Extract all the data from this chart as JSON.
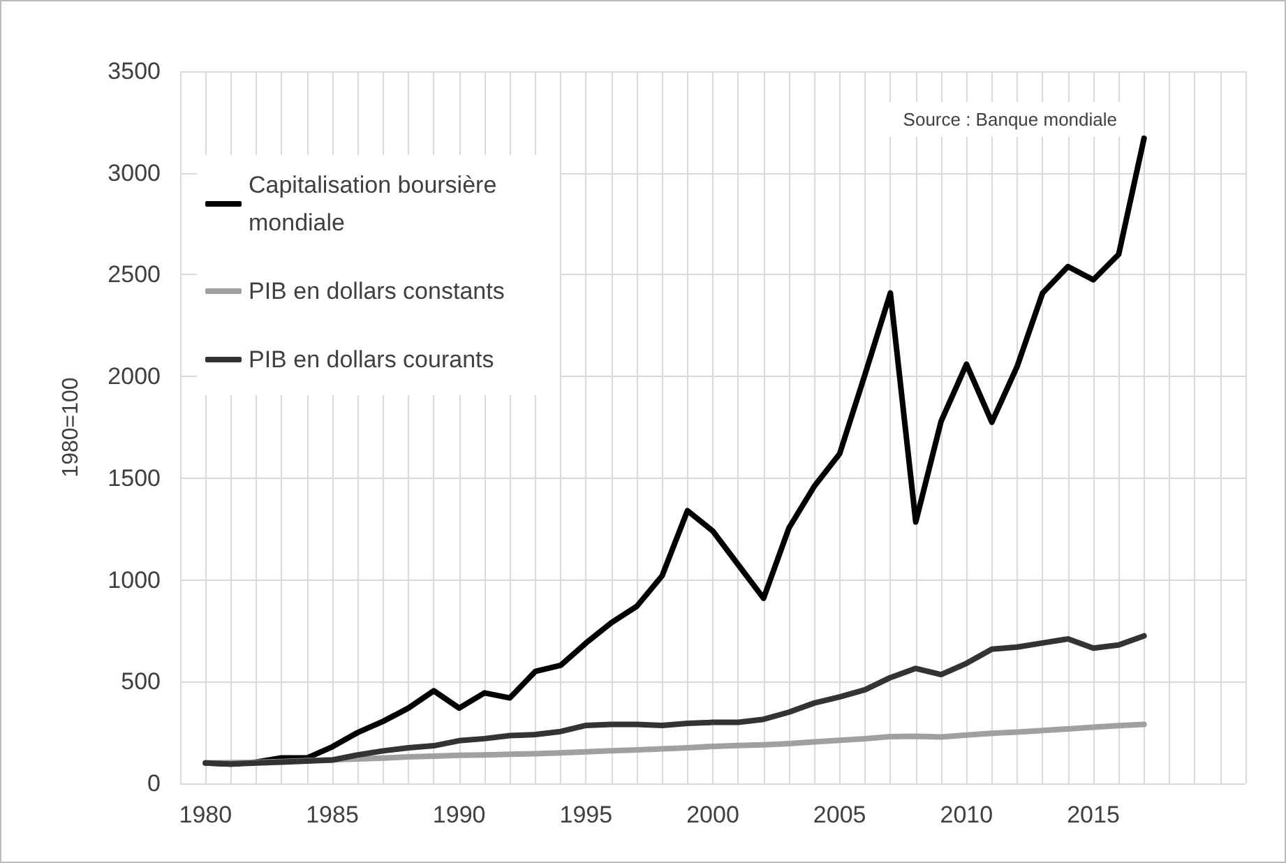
{
  "chart_data": {
    "type": "line",
    "ylabel": "1980=100",
    "annotations": [
      "Source : Banque mondiale"
    ],
    "x": [
      1980,
      1981,
      1982,
      1983,
      1984,
      1985,
      1986,
      1987,
      1988,
      1989,
      1990,
      1991,
      1992,
      1993,
      1994,
      1995,
      1996,
      1997,
      1998,
      1999,
      2000,
      2001,
      2002,
      2003,
      2004,
      2005,
      2006,
      2007,
      2008,
      2009,
      2010,
      2011,
      2012,
      2013,
      2014,
      2015,
      2016,
      2017
    ],
    "series": [
      {
        "name": "Capitalisation boursière mondiale",
        "color": "#000000",
        "values": [
          100,
          95,
          105,
          125,
          125,
          180,
          250,
          305,
          370,
          455,
          370,
          445,
          420,
          550,
          580,
          690,
          790,
          870,
          1020,
          1340,
          1240,
          1075,
          910,
          1255,
          1460,
          1620,
          2010,
          2410,
          1285,
          1780,
          2060,
          1775,
          2050,
          2410,
          2540,
          2475,
          2600,
          3170
        ]
      },
      {
        "name": "PIB en dollars constants",
        "color": "#a0a0a0",
        "values": [
          100,
          102,
          104,
          107,
          112,
          116,
          120,
          124,
          130,
          134,
          138,
          140,
          143,
          146,
          150,
          155,
          160,
          165,
          170,
          175,
          182,
          186,
          190,
          196,
          204,
          212,
          220,
          230,
          232,
          228,
          238,
          246,
          252,
          260,
          268,
          276,
          284,
          290
        ]
      },
      {
        "name": "PIB en dollars courants",
        "color": "#333333",
        "values": [
          100,
          95,
          100,
          105,
          110,
          115,
          140,
          160,
          175,
          185,
          210,
          220,
          235,
          240,
          255,
          285,
          290,
          290,
          285,
          295,
          300,
          300,
          315,
          350,
          395,
          425,
          460,
          520,
          565,
          535,
          590,
          660,
          670,
          690,
          710,
          665,
          680,
          725
        ]
      }
    ],
    "xlim": [
      1979,
      2021
    ],
    "xticks": [
      {
        "value": 1979,
        "label": null
      },
      1980,
      {
        "value": 1981,
        "label": null
      },
      {
        "value": 1982,
        "label": null
      },
      {
        "value": 1983,
        "label": null
      },
      {
        "value": 1984,
        "label": null
      },
      1985,
      {
        "value": 1986,
        "label": null
      },
      {
        "value": 1987,
        "label": null
      },
      {
        "value": 1988,
        "label": null
      },
      {
        "value": 1989,
        "label": null
      },
      1990,
      {
        "value": 1991,
        "label": null
      },
      {
        "value": 1992,
        "label": null
      },
      {
        "value": 1993,
        "label": null
      },
      {
        "value": 1994,
        "label": null
      },
      1995,
      {
        "value": 1996,
        "label": null
      },
      {
        "value": 1997,
        "label": null
      },
      {
        "value": 1998,
        "label": null
      },
      {
        "value": 1999,
        "label": null
      },
      2000,
      {
        "value": 2001,
        "label": null
      },
      {
        "value": 2002,
        "label": null
      },
      {
        "value": 2003,
        "label": null
      },
      {
        "value": 2004,
        "label": null
      },
      2005,
      {
        "value": 2006,
        "label": null
      },
      {
        "value": 2007,
        "label": null
      },
      {
        "value": 2008,
        "label": null
      },
      {
        "value": 2009,
        "label": null
      },
      2010,
      {
        "value": 2011,
        "label": null
      },
      {
        "value": 2012,
        "label": null
      },
      {
        "value": 2013,
        "label": null
      },
      {
        "value": 2014,
        "label": null
      },
      2015,
      {
        "value": 2016,
        "label": null
      },
      {
        "value": 2017,
        "label": null
      },
      {
        "value": 2018,
        "label": null
      },
      {
        "value": 2019,
        "label": null
      },
      {
        "value": 2020,
        "label": null
      },
      {
        "value": 2021,
        "label": null
      }
    ],
    "ylim": [
      0,
      3500
    ],
    "yticks": [
      0,
      500,
      1000,
      1500,
      2000,
      2500,
      3000,
      3500
    ],
    "grid": true,
    "legend": "top left",
    "marker": "none",
    "line_style": "solid"
  }
}
